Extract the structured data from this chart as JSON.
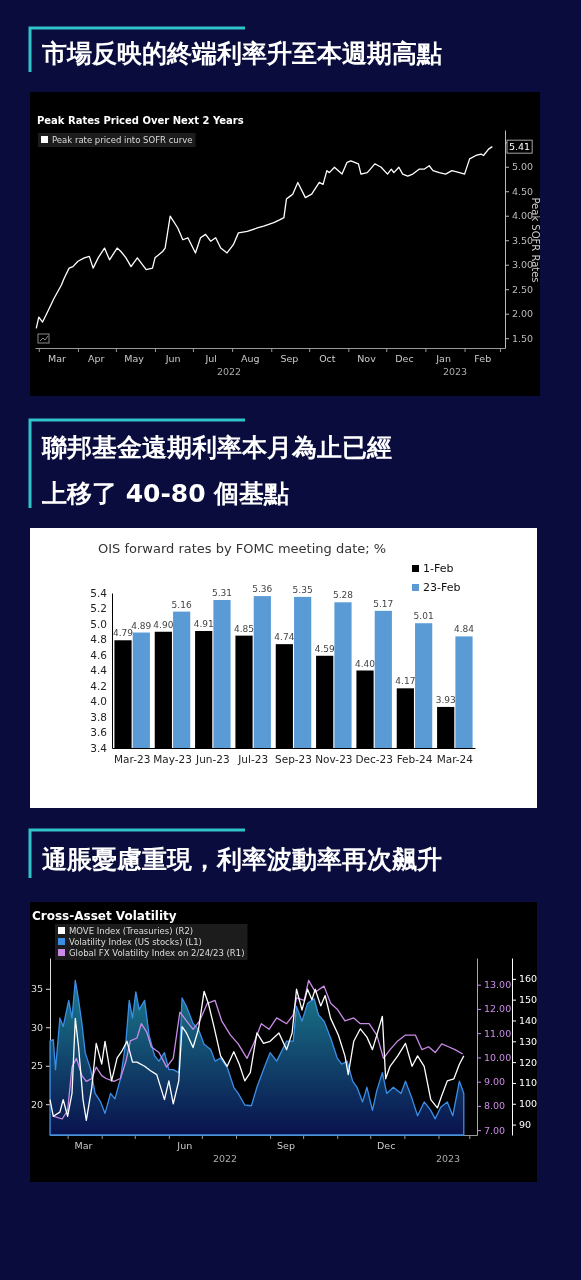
{
  "chart_data": [
    {
      "type": "line",
      "title": "市場反映的終端利率升至本週期高點",
      "subtitle": "Peak Rates Priced Over Next 2 Years",
      "ylabel": "Peak SOFR Rates",
      "legend": "top left",
      "xlim": [
        "2022-02-26",
        "2023-03-05"
      ],
      "xticks": [
        {
          "value": "2022-03-01",
          "label": null
        },
        {
          "value": "2022-03-15",
          "label": "Mar"
        },
        {
          "value": "2022-04-01",
          "label": null
        },
        {
          "value": "2022-04-15",
          "label": "Apr"
        },
        {
          "value": "2022-05-01",
          "label": null
        },
        {
          "value": "2022-05-15",
          "label": "May"
        },
        {
          "value": "2022-06-01",
          "label": null
        },
        {
          "value": "2022-06-15",
          "label": "Jun"
        },
        {
          "value": "2022-07-01",
          "label": null
        },
        {
          "value": "2022-07-15",
          "label": "Jul"
        },
        {
          "value": "2022-08-01",
          "label": null
        },
        {
          "value": "2022-08-15",
          "label": "Aug"
        },
        {
          "value": "2022-09-01",
          "label": null
        },
        {
          "value": "2022-09-15",
          "label": "Sep"
        },
        {
          "value": "2022-10-01",
          "label": null
        },
        {
          "value": "2022-10-15",
          "label": "Oct"
        },
        {
          "value": "2022-11-01",
          "label": null
        },
        {
          "value": "2022-11-15",
          "label": "Nov"
        },
        {
          "value": "2022-12-01",
          "label": null
        },
        {
          "value": "2022-12-15",
          "label": "Dec"
        },
        {
          "value": "2023-01-01",
          "label": null
        },
        {
          "value": "2023-01-15",
          "label": "Jan"
        },
        {
          "value": "2023-02-01",
          "label": null
        },
        {
          "value": "2023-02-15",
          "label": "Feb"
        },
        {
          "value": "2023-03-01",
          "label": null
        }
      ],
      "ylim": [
        1.3,
        5.75
      ],
      "yticks": [
        {
          "value": 1.5,
          "label": "1.50"
        },
        {
          "value": 2,
          "label": "2.00"
        },
        {
          "value": 2.5,
          "label": "2.50"
        },
        {
          "value": 3,
          "label": "3.00"
        },
        {
          "value": 3.5,
          "label": "3.50"
        },
        {
          "value": 4,
          "label": "4.00"
        },
        {
          "value": 4.5,
          "label": "4.50"
        },
        {
          "value": 5,
          "label": "5.00"
        },
        {
          "value": 5.5,
          "label": null
        }
      ],
      "x": [
        "2022-02-27",
        "2022-03-01",
        "2022-03-04",
        "2022-03-08",
        "2022-03-13",
        "2022-03-19",
        "2022-03-21",
        "2022-03-25",
        "2022-03-28",
        "2022-04-01",
        "2022-04-06",
        "2022-04-10",
        "2022-04-13",
        "2022-04-17",
        "2022-04-22",
        "2022-04-26",
        "2022-05-02",
        "2022-05-05",
        "2022-05-09",
        "2022-05-13",
        "2022-05-18",
        "2022-05-25",
        "2022-05-30",
        "2022-06-01",
        "2022-06-07",
        "2022-06-09",
        "2022-06-13",
        "2022-06-19",
        "2022-06-23",
        "2022-06-27",
        "2022-07-03",
        "2022-07-07",
        "2022-07-11",
        "2022-07-15",
        "2022-07-19",
        "2022-07-23",
        "2022-07-28",
        "2022-08-02",
        "2022-08-06",
        "2022-08-13",
        "2022-08-21",
        "2022-08-26",
        "2022-09-03",
        "2022-09-08",
        "2022-09-11",
        "2022-09-13",
        "2022-09-16",
        "2022-09-18",
        "2022-09-22",
        "2022-09-28",
        "2022-10-03",
        "2022-10-09",
        "2022-10-12",
        "2022-10-15",
        "2022-10-17",
        "2022-10-21",
        "2022-10-27",
        "2022-10-31",
        "2022-11-03",
        "2022-11-09",
        "2022-11-11",
        "2022-11-16",
        "2022-11-22",
        "2022-11-27",
        "2022-12-02",
        "2022-12-05",
        "2022-12-07",
        "2022-12-11",
        "2022-12-14",
        "2022-12-18",
        "2022-12-22",
        "2022-12-27",
        "2022-12-31",
        "2023-01-04",
        "2023-01-07",
        "2023-01-12",
        "2023-01-17",
        "2023-01-22",
        "2023-01-28",
        "2023-02-01",
        "2023-02-05",
        "2023-02-10",
        "2023-02-14",
        "2023-02-16",
        "2023-02-20",
        "2023-02-23"
      ],
      "series": [
        {
          "name": "Peak rate priced into SOFR curve",
          "color": "#ffffff",
          "values": [
            1.7,
            1.93,
            1.83,
            2.04,
            2.31,
            2.59,
            2.72,
            2.93,
            2.96,
            3.07,
            3.14,
            3.17,
            2.93,
            3.14,
            3.34,
            3.1,
            3.34,
            3.27,
            3.14,
            2.96,
            3.14,
            2.9,
            2.93,
            3.14,
            3.27,
            3.34,
            3.99,
            3.75,
            3.51,
            3.55,
            3.24,
            3.55,
            3.62,
            3.48,
            3.55,
            3.34,
            3.24,
            3.41,
            3.65,
            3.68,
            3.75,
            3.79,
            3.86,
            3.92,
            3.96,
            4.34,
            4.4,
            4.44,
            4.68,
            4.37,
            4.44,
            4.68,
            4.64,
            4.92,
            4.88,
            4.99,
            4.85,
            5.09,
            5.12,
            5.06,
            4.85,
            4.88,
            5.06,
            4.99,
            4.85,
            4.95,
            4.88,
            4.99,
            4.85,
            4.81,
            4.85,
            4.95,
            4.95,
            5.02,
            4.92,
            4.88,
            4.85,
            4.92,
            4.88,
            4.85,
            5.16,
            5.23,
            5.26,
            5.23,
            5.36,
            5.41
          ]
        }
      ],
      "annotations": [
        {
          "text": "5.41",
          "x": "2023-02-23",
          "y": 5.41
        },
        "2022",
        "2023"
      ]
    },
    {
      "type": "bar",
      "title": "聯邦基金遠期利率本月為止已經上移了 40-80 個基點",
      "subtitle": "OIS forward rates by FOMC meeting date; %",
      "legend": "top right",
      "categories": [
        "Mar-23",
        "May-23",
        "Jun-23",
        "Jul-23",
        "Sep-23",
        "Nov-23",
        "Dec-23",
        "Feb-24",
        "Mar-24"
      ],
      "ylim": [
        3.4,
        5.4
      ],
      "yticks": [
        3.4,
        3.6,
        3.8,
        {
          "value": 4,
          "label": "4.0"
        },
        4.2,
        4.4,
        4.6,
        4.8,
        {
          "value": 5,
          "label": "5.0"
        },
        5.2,
        5.4
      ],
      "series": [
        {
          "name": "1-Feb",
          "color": "#000000",
          "values": [
            4.79,
            4.9,
            4.91,
            4.85,
            4.74,
            4.59,
            4.4,
            4.17,
            3.93
          ],
          "value_labels": [
            "4.79",
            "4.90",
            "4.91",
            "4.85",
            "4.74",
            "4.59",
            "4.40",
            "4.17",
            "3.93"
          ]
        },
        {
          "name": "23-Feb",
          "color": "#5b9bd5",
          "values": [
            4.89,
            5.16,
            5.31,
            5.36,
            5.35,
            5.28,
            5.17,
            5.01,
            4.84
          ],
          "value_labels": [
            "4.89",
            "5.16",
            "5.31",
            "5.36",
            "5.35",
            "5.28",
            "5.17",
            "5.01",
            "4.84"
          ]
        }
      ]
    },
    {
      "type": "line",
      "title": "通脹憂慮重現，利率波動率再次飆升",
      "subtitle": "Cross-Asset Volatility",
      "legend": "top left",
      "xlim": [
        "2022-02-13",
        "2023-03-08"
      ],
      "xticks": [
        {
          "value": "2022-03-01",
          "label": null
        },
        {
          "value": "2022-03-15",
          "label": "Mar"
        },
        {
          "value": "2022-04-01",
          "label": null
        },
        {
          "value": "2022-05-01",
          "label": null
        },
        {
          "value": "2022-06-01",
          "label": null
        },
        {
          "value": "2022-06-15",
          "label": "Jun"
        },
        {
          "value": "2022-07-01",
          "label": null
        },
        {
          "value": "2022-08-01",
          "label": null
        },
        {
          "value": "2022-09-01",
          "label": null
        },
        {
          "value": "2022-09-15",
          "label": "Sep"
        },
        {
          "value": "2022-10-01",
          "label": null
        },
        {
          "value": "2022-11-01",
          "label": null
        },
        {
          "value": "2022-12-01",
          "label": null
        },
        {
          "value": "2022-12-15",
          "label": "Dec"
        },
        {
          "value": "2023-01-01",
          "label": null
        },
        {
          "value": "2023-02-01",
          "label": null
        },
        {
          "value": "2023-03-01",
          "label": null
        }
      ],
      "ylim": [
        16,
        39
      ],
      "yticks": [
        20,
        25,
        30,
        35
      ],
      "y2lim": [
        6.8,
        14.1
      ],
      "y2ticks": [
        {
          "value": 7,
          "label": "7.00"
        },
        {
          "value": 8,
          "label": "8.00"
        },
        {
          "value": 9,
          "label": "9.00"
        },
        {
          "value": 10,
          "label": "10.00"
        },
        {
          "value": 11,
          "label": "11.00"
        },
        {
          "value": 12,
          "label": "12.00"
        },
        {
          "value": 13,
          "label": "13.00"
        }
      ],
      "y3lim": [
        85,
        170
      ],
      "y3ticks": [
        90,
        100,
        110,
        120,
        130,
        140,
        150,
        160
      ],
      "series": [
        {
          "name": "MOVE Index (Treasuries) (R2)",
          "type": "line",
          "axis": "y3",
          "color": "#ffffff",
          "x": [
            "2022-02-13",
            "2022-02-16",
            "2022-02-22",
            "2022-02-25",
            "2022-03-01",
            "2022-03-05",
            "2022-03-08",
            "2022-03-11",
            "2022-03-15",
            "2022-03-18",
            "2022-03-23",
            "2022-03-27",
            "2022-04-01",
            "2022-04-04",
            "2022-04-10",
            "2022-04-15",
            "2022-04-19",
            "2022-04-24",
            "2022-04-29",
            "2022-05-03",
            "2022-05-10",
            "2022-05-15",
            "2022-05-21",
            "2022-05-28",
            "2022-06-01",
            "2022-06-05",
            "2022-06-10",
            "2022-06-13",
            "2022-06-17",
            "2022-06-23",
            "2022-06-28",
            "2022-07-03",
            "2022-07-07",
            "2022-07-12",
            "2022-07-18",
            "2022-07-24",
            "2022-07-30",
            "2022-08-04",
            "2022-08-09",
            "2022-08-14",
            "2022-08-20",
            "2022-08-26",
            "2022-09-01",
            "2022-09-09",
            "2022-09-16",
            "2022-09-21",
            "2022-09-25",
            "2022-09-30",
            "2022-10-05",
            "2022-10-09",
            "2022-10-12",
            "2022-10-17",
            "2022-10-21",
            "2022-10-26",
            "2022-11-02",
            "2022-11-08",
            "2022-11-11",
            "2022-11-16",
            "2022-11-22",
            "2022-11-28",
            "2022-12-03",
            "2022-12-07",
            "2022-12-12",
            "2022-12-15",
            "2022-12-19",
            "2022-12-26",
            "2023-01-02",
            "2023-01-08",
            "2023-01-13",
            "2023-01-19",
            "2023-01-25",
            "2023-01-31",
            "2023-02-04",
            "2023-02-09",
            "2023-02-15",
            "2023-02-20",
            "2023-02-24"
          ],
          "values": [
            102,
            94,
            96,
            102,
            94,
            105,
            141,
            127,
            102,
            92,
            108,
            129,
            119,
            130,
            111,
            122,
            125,
            130,
            120,
            120,
            118,
            116,
            114,
            102,
            111,
            100,
            111,
            137,
            134,
            127,
            136,
            154,
            148,
            137,
            123,
            118,
            125,
            119,
            111,
            115,
            134,
            129,
            130,
            134,
            126,
            134,
            155,
            145,
            155,
            150,
            155,
            147,
            152,
            141,
            133,
            123,
            114,
            130,
            136,
            132,
            126,
            133,
            142,
            112,
            118,
            123,
            129,
            118,
            123,
            118,
            102,
            98,
            104,
            111,
            112,
            119,
            123
          ]
        },
        {
          "name": "Volatility Index (US stocks) (L1)",
          "type": "area",
          "axis": "y",
          "color": "#3b8ee6",
          "x": [
            "2022-02-13",
            "2022-02-16",
            "2022-02-18",
            "2022-02-22",
            "2022-02-25",
            "2022-03-02",
            "2022-03-05",
            "2022-03-08",
            "2022-03-11",
            "2022-03-14",
            "2022-03-17",
            "2022-03-22",
            "2022-03-26",
            "2022-03-31",
            "2022-04-04",
            "2022-04-09",
            "2022-04-13",
            "2022-04-18",
            "2022-04-23",
            "2022-04-26",
            "2022-04-29",
            "2022-05-02",
            "2022-05-05",
            "2022-05-10",
            "2022-05-14",
            "2022-05-19",
            "2022-05-23",
            "2022-05-28",
            "2022-06-01",
            "2022-06-05",
            "2022-06-10",
            "2022-06-13",
            "2022-06-17",
            "2022-06-23",
            "2022-06-28",
            "2022-07-03",
            "2022-07-09",
            "2022-07-13",
            "2022-07-18",
            "2022-07-24",
            "2022-07-30",
            "2022-08-03",
            "2022-08-09",
            "2022-08-15",
            "2022-08-20",
            "2022-08-26",
            "2022-09-01",
            "2022-09-07",
            "2022-09-16",
            "2022-09-22",
            "2022-09-25",
            "2022-09-30",
            "2022-10-05",
            "2022-10-11",
            "2022-10-15",
            "2022-10-20",
            "2022-10-26",
            "2022-11-01",
            "2022-11-05",
            "2022-11-10",
            "2022-11-15",
            "2022-11-19",
            "2022-11-24",
            "2022-11-28",
            "2022-12-03",
            "2022-12-07",
            "2022-12-12",
            "2022-12-16",
            "2022-12-22",
            "2022-12-29",
            "2023-01-02",
            "2023-01-08",
            "2023-01-13",
            "2023-01-19",
            "2023-01-25",
            "2023-01-29",
            "2023-02-03",
            "2023-02-09",
            "2023-02-14",
            "2023-02-20",
            "2023-02-24"
          ],
          "values": [
            28.2,
            28.4,
            24.5,
            31.2,
            30.1,
            33.5,
            31.2,
            36.1,
            33.5,
            30.5,
            26.7,
            24.5,
            21.4,
            20.3,
            18.8,
            21.4,
            20.7,
            23.3,
            28.2,
            33.5,
            31.2,
            34.6,
            32.3,
            33.5,
            29.0,
            26.3,
            25.6,
            26.7,
            24.5,
            24.5,
            24.1,
            33.8,
            32.7,
            30.5,
            29.7,
            27.8,
            27.1,
            25.6,
            26.0,
            24.8,
            22.2,
            21.4,
            19.9,
            19.8,
            22.2,
            24.5,
            26.7,
            25.6,
            28.2,
            28.2,
            32.7,
            30.8,
            33.1,
            33.7,
            31.6,
            30.8,
            28.6,
            26.0,
            25.2,
            25.6,
            23.0,
            22.2,
            20.3,
            22.2,
            19.2,
            21.8,
            24.1,
            21.4,
            22.2,
            21.4,
            23.0,
            20.7,
            18.5,
            20.3,
            19.2,
            18.1,
            19.6,
            20.3,
            18.5,
            23.0,
            21.4
          ]
        },
        {
          "name": "Global FX Volatility Index  on 2/24/23 (R1)",
          "type": "line",
          "axis": "y2",
          "color": "#c98be6",
          "x": [
            "2022-02-16",
            "2022-02-24",
            "2022-03-01",
            "2022-03-05",
            "2022-03-09",
            "2022-03-14",
            "2022-03-18",
            "2022-03-23",
            "2022-03-27",
            "2022-04-01",
            "2022-04-05",
            "2022-04-12",
            "2022-04-18",
            "2022-04-23",
            "2022-04-27",
            "2022-05-03",
            "2022-05-07",
            "2022-05-12",
            "2022-05-16",
            "2022-05-23",
            "2022-05-30",
            "2022-06-05",
            "2022-06-11",
            "2022-06-17",
            "2022-06-23",
            "2022-06-29",
            "2022-07-06",
            "2022-07-13",
            "2022-07-19",
            "2022-07-27",
            "2022-08-03",
            "2022-08-11",
            "2022-08-17",
            "2022-08-24",
            "2022-08-31",
            "2022-09-07",
            "2022-09-16",
            "2022-09-22",
            "2022-09-25",
            "2022-10-02",
            "2022-10-06",
            "2022-10-12",
            "2022-10-20",
            "2022-10-26",
            "2022-11-01",
            "2022-11-08",
            "2022-11-16",
            "2022-11-22",
            "2022-11-30",
            "2022-12-07",
            "2022-12-13",
            "2022-12-19",
            "2022-12-26",
            "2023-01-02",
            "2023-01-11",
            "2023-01-17",
            "2023-01-23",
            "2023-01-29",
            "2023-02-04",
            "2023-02-10",
            "2023-02-16",
            "2023-02-23"
          ],
          "values": [
            7.58,
            7.46,
            7.81,
            9.6,
            9.96,
            9.25,
            9.01,
            9.13,
            9.6,
            9.25,
            9.13,
            9.01,
            9.13,
            9.84,
            10.68,
            10.8,
            11.39,
            11.03,
            10.44,
            10.2,
            9.6,
            9.96,
            11.87,
            11.51,
            11.16,
            11.51,
            12.23,
            12.35,
            11.51,
            10.92,
            10.56,
            9.96,
            10.56,
            11.39,
            11.16,
            11.63,
            11.39,
            11.75,
            12.46,
            12.35,
            13.18,
            12.7,
            12.94,
            12.23,
            11.99,
            11.51,
            11.63,
            11.39,
            11.39,
            10.92,
            9.96,
            10.32,
            10.68,
            10.92,
            10.92,
            10.32,
            10.44,
            10.2,
            10.56,
            10.44,
            10.32,
            10.14
          ]
        }
      ],
      "annotations": [
        "2022",
        "2023"
      ]
    }
  ]
}
